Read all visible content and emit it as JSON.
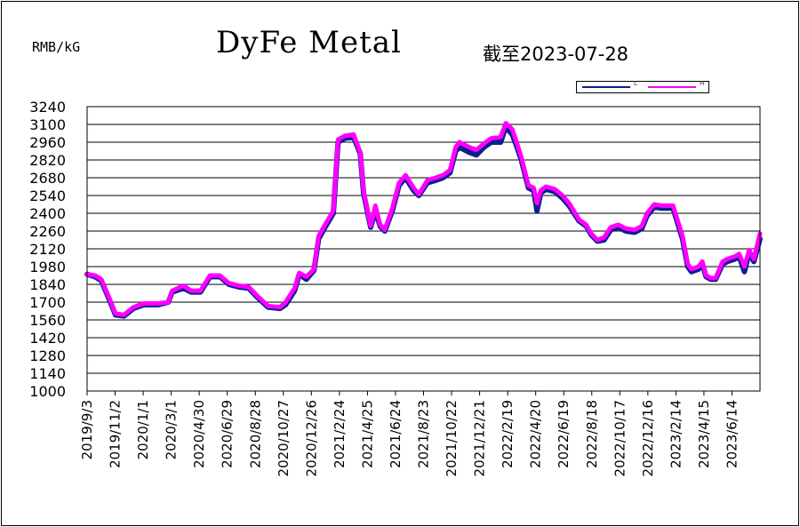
{
  "header": {
    "unit": "RMB/kG",
    "title": "DyFe Metal",
    "as_of": "截至2023-07-28"
  },
  "legend": {
    "entries": [
      {
        "label": "L",
        "color": "#0b1f8f"
      },
      {
        "label": "H",
        "color": "#ff00ff"
      }
    ]
  },
  "chart_data": {
    "type": "line",
    "title": "DyFe Metal",
    "ylabel": "RMB/kG",
    "ylim": [
      1000,
      3240
    ],
    "yticks": [
      1000,
      1140,
      1280,
      1420,
      1560,
      1700,
      1840,
      1980,
      2120,
      2260,
      2400,
      2540,
      2680,
      2820,
      2960,
      3100,
      3240
    ],
    "xlim": [
      "2019-09-03",
      "2023-07-28"
    ],
    "xtick_labels": [
      "2019/9/3",
      "2019/11/2",
      "2020/1/1",
      "2020/3/1",
      "2020/4/30",
      "2020/6/29",
      "2020/8/28",
      "2020/10/27",
      "2020/12/26",
      "2021/2/24",
      "2021/4/25",
      "2021/6/24",
      "2021/8/23",
      "2021/10/22",
      "2021/12/21",
      "2022/2/19",
      "2022/4/20",
      "2022/6/19",
      "2022/8/18",
      "2022/10/17",
      "2022/12/16",
      "2023/2/14",
      "2023/4/15",
      "2023/6/14"
    ],
    "grid": true,
    "legend_position": "top-right",
    "series": [
      {
        "name": "L",
        "color": "#0b1f8f",
        "points": [
          [
            "2019-09-03",
            1920
          ],
          [
            "2019-09-20",
            1900
          ],
          [
            "2019-10-03",
            1870
          ],
          [
            "2019-10-20",
            1720
          ],
          [
            "2019-11-02",
            1600
          ],
          [
            "2019-11-20",
            1590
          ],
          [
            "2019-12-10",
            1650
          ],
          [
            "2020-01-01",
            1680
          ],
          [
            "2020-02-01",
            1680
          ],
          [
            "2020-02-22",
            1700
          ],
          [
            "2020-03-01",
            1780
          ],
          [
            "2020-03-25",
            1810
          ],
          [
            "2020-04-10",
            1780
          ],
          [
            "2020-04-30",
            1780
          ],
          [
            "2020-05-20",
            1900
          ],
          [
            "2020-06-10",
            1900
          ],
          [
            "2020-06-29",
            1840
          ],
          [
            "2020-07-20",
            1820
          ],
          [
            "2020-08-10",
            1810
          ],
          [
            "2020-08-28",
            1740
          ],
          [
            "2020-09-20",
            1660
          ],
          [
            "2020-10-15",
            1650
          ],
          [
            "2020-10-27",
            1680
          ],
          [
            "2020-11-15",
            1790
          ],
          [
            "2020-11-25",
            1920
          ],
          [
            "2020-12-10",
            1880
          ],
          [
            "2020-12-26",
            1950
          ],
          [
            "2021-01-05",
            2200
          ],
          [
            "2021-01-20",
            2300
          ],
          [
            "2021-02-05",
            2400
          ],
          [
            "2021-02-15",
            2960
          ],
          [
            "2021-03-01",
            2990
          ],
          [
            "2021-03-20",
            3000
          ],
          [
            "2021-04-03",
            2870
          ],
          [
            "2021-04-10",
            2560
          ],
          [
            "2021-04-25",
            2290
          ],
          [
            "2021-05-05",
            2420
          ],
          [
            "2021-05-15",
            2300
          ],
          [
            "2021-05-25",
            2260
          ],
          [
            "2021-06-10",
            2420
          ],
          [
            "2021-06-24",
            2620
          ],
          [
            "2021-07-08",
            2680
          ],
          [
            "2021-07-25",
            2580
          ],
          [
            "2021-08-05",
            2540
          ],
          [
            "2021-08-23",
            2640
          ],
          [
            "2021-09-10",
            2660
          ],
          [
            "2021-09-25",
            2680
          ],
          [
            "2021-10-10",
            2720
          ],
          [
            "2021-10-22",
            2890
          ],
          [
            "2021-10-30",
            2920
          ],
          [
            "2021-11-20",
            2880
          ],
          [
            "2021-12-05",
            2860
          ],
          [
            "2021-12-21",
            2920
          ],
          [
            "2022-01-05",
            2960
          ],
          [
            "2022-01-25",
            2960
          ],
          [
            "2022-02-05",
            3080
          ],
          [
            "2022-02-19",
            3020
          ],
          [
            "2022-02-28",
            2930
          ],
          [
            "2022-03-10",
            2820
          ],
          [
            "2022-03-25",
            2600
          ],
          [
            "2022-04-05",
            2580
          ],
          [
            "2022-04-12",
            2420
          ],
          [
            "2022-04-20",
            2560
          ],
          [
            "2022-05-01",
            2590
          ],
          [
            "2022-05-20",
            2570
          ],
          [
            "2022-06-05",
            2520
          ],
          [
            "2022-06-19",
            2460
          ],
          [
            "2022-07-10",
            2340
          ],
          [
            "2022-07-25",
            2300
          ],
          [
            "2022-08-05",
            2230
          ],
          [
            "2022-08-18",
            2180
          ],
          [
            "2022-09-01",
            2190
          ],
          [
            "2022-09-15",
            2270
          ],
          [
            "2022-10-01",
            2290
          ],
          [
            "2022-10-17",
            2260
          ],
          [
            "2022-11-05",
            2250
          ],
          [
            "2022-11-20",
            2280
          ],
          [
            "2022-12-01",
            2380
          ],
          [
            "2022-12-16",
            2450
          ],
          [
            "2023-01-01",
            2440
          ],
          [
            "2023-01-25",
            2440
          ],
          [
            "2023-02-14",
            2200
          ],
          [
            "2023-02-25",
            1980
          ],
          [
            "2023-03-05",
            1940
          ],
          [
            "2023-03-20",
            1960
          ],
          [
            "2023-03-28",
            2000
          ],
          [
            "2023-04-05",
            1900
          ],
          [
            "2023-04-15",
            1880
          ],
          [
            "2023-04-25",
            1880
          ],
          [
            "2023-05-10",
            2000
          ],
          [
            "2023-05-20",
            2020
          ],
          [
            "2023-06-05",
            2040
          ],
          [
            "2023-06-14",
            2060
          ],
          [
            "2023-06-25",
            1940
          ],
          [
            "2023-07-05",
            2090
          ],
          [
            "2023-07-15",
            2020
          ],
          [
            "2023-07-28",
            2200
          ]
        ]
      },
      {
        "name": "H",
        "color": "#ff00ff",
        "points": [
          [
            "2019-09-03",
            1920
          ],
          [
            "2019-09-20",
            1910
          ],
          [
            "2019-10-03",
            1880
          ],
          [
            "2019-10-20",
            1730
          ],
          [
            "2019-11-02",
            1610
          ],
          [
            "2019-11-20",
            1600
          ],
          [
            "2019-12-10",
            1660
          ],
          [
            "2020-01-01",
            1690
          ],
          [
            "2020-02-01",
            1690
          ],
          [
            "2020-02-22",
            1700
          ],
          [
            "2020-03-01",
            1790
          ],
          [
            "2020-03-25",
            1830
          ],
          [
            "2020-04-10",
            1790
          ],
          [
            "2020-04-30",
            1790
          ],
          [
            "2020-05-20",
            1910
          ],
          [
            "2020-06-10",
            1910
          ],
          [
            "2020-06-29",
            1850
          ],
          [
            "2020-07-20",
            1830
          ],
          [
            "2020-08-10",
            1820
          ],
          [
            "2020-08-28",
            1750
          ],
          [
            "2020-09-20",
            1670
          ],
          [
            "2020-10-15",
            1660
          ],
          [
            "2020-10-27",
            1700
          ],
          [
            "2020-11-15",
            1810
          ],
          [
            "2020-11-25",
            1930
          ],
          [
            "2020-12-10",
            1900
          ],
          [
            "2020-12-26",
            1960
          ],
          [
            "2021-01-05",
            2220
          ],
          [
            "2021-01-20",
            2320
          ],
          [
            "2021-02-05",
            2420
          ],
          [
            "2021-02-15",
            2980
          ],
          [
            "2021-03-01",
            3010
          ],
          [
            "2021-03-20",
            3020
          ],
          [
            "2021-04-03",
            2880
          ],
          [
            "2021-04-10",
            2580
          ],
          [
            "2021-04-25",
            2300
          ],
          [
            "2021-05-05",
            2460
          ],
          [
            "2021-05-15",
            2310
          ],
          [
            "2021-05-25",
            2270
          ],
          [
            "2021-06-10",
            2440
          ],
          [
            "2021-06-24",
            2640
          ],
          [
            "2021-07-08",
            2700
          ],
          [
            "2021-07-25",
            2600
          ],
          [
            "2021-08-05",
            2550
          ],
          [
            "2021-08-23",
            2660
          ],
          [
            "2021-09-10",
            2680
          ],
          [
            "2021-09-25",
            2700
          ],
          [
            "2021-10-10",
            2740
          ],
          [
            "2021-10-22",
            2920
          ],
          [
            "2021-10-30",
            2960
          ],
          [
            "2021-11-20",
            2920
          ],
          [
            "2021-12-05",
            2900
          ],
          [
            "2021-12-21",
            2950
          ],
          [
            "2022-01-05",
            2990
          ],
          [
            "2022-01-25",
            3000
          ],
          [
            "2022-02-05",
            3110
          ],
          [
            "2022-02-19",
            3060
          ],
          [
            "2022-02-28",
            2960
          ],
          [
            "2022-03-10",
            2840
          ],
          [
            "2022-03-25",
            2620
          ],
          [
            "2022-04-05",
            2600
          ],
          [
            "2022-04-12",
            2480
          ],
          [
            "2022-04-20",
            2580
          ],
          [
            "2022-05-01",
            2610
          ],
          [
            "2022-05-20",
            2590
          ],
          [
            "2022-06-05",
            2540
          ],
          [
            "2022-06-19",
            2480
          ],
          [
            "2022-07-10",
            2350
          ],
          [
            "2022-07-25",
            2310
          ],
          [
            "2022-08-05",
            2240
          ],
          [
            "2022-08-18",
            2190
          ],
          [
            "2022-09-01",
            2210
          ],
          [
            "2022-09-15",
            2290
          ],
          [
            "2022-10-01",
            2310
          ],
          [
            "2022-10-17",
            2280
          ],
          [
            "2022-11-05",
            2270
          ],
          [
            "2022-11-20",
            2300
          ],
          [
            "2022-12-01",
            2400
          ],
          [
            "2022-12-16",
            2470
          ],
          [
            "2023-01-01",
            2460
          ],
          [
            "2023-01-25",
            2460
          ],
          [
            "2023-02-14",
            2220
          ],
          [
            "2023-02-25",
            2000
          ],
          [
            "2023-03-05",
            1960
          ],
          [
            "2023-03-20",
            1980
          ],
          [
            "2023-03-28",
            2020
          ],
          [
            "2023-04-05",
            1910
          ],
          [
            "2023-04-15",
            1890
          ],
          [
            "2023-04-25",
            1890
          ],
          [
            "2023-05-10",
            2020
          ],
          [
            "2023-05-20",
            2040
          ],
          [
            "2023-06-05",
            2060
          ],
          [
            "2023-06-14",
            2080
          ],
          [
            "2023-06-25",
            1980
          ],
          [
            "2023-07-05",
            2110
          ],
          [
            "2023-07-15",
            2040
          ],
          [
            "2023-07-28",
            2240
          ]
        ]
      }
    ]
  }
}
